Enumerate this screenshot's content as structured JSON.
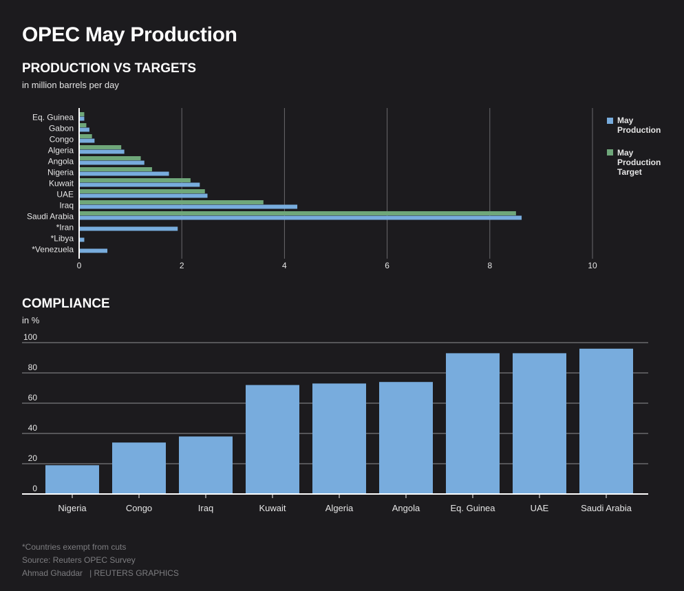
{
  "header": {
    "title": "OPEC May Production"
  },
  "production_section": {
    "title": "PRODUCTION VS TARGETS",
    "subtitle": "in million barrels per day"
  },
  "compliance_section": {
    "title": "COMPLIANCE",
    "subtitle": "in %"
  },
  "footer": {
    "note": "*Countries exempt from cuts",
    "source": "Source: Reuters OPEC Survey",
    "author": "Ahmad Ghaddar",
    "credit": "| REUTERS GRAPHICS"
  },
  "colors": {
    "background": "#1c1b1e",
    "production": "#78acdd",
    "target": "#6fa77a",
    "grid": "#6a6a6d",
    "axis": "#ffffff"
  },
  "chart_data": [
    {
      "type": "bar",
      "orientation": "horizontal",
      "title": "PRODUCTION VS TARGETS",
      "subtitle": "in million barrels per day",
      "categories": [
        "Eq. Guinea",
        "Gabon",
        "Congo",
        "Algeria",
        "Angola",
        "Nigeria",
        "Kuwait",
        "UAE",
        "Iraq",
        "Saudi Arabia",
        "*Iran",
        "*Libya",
        "*Venezuela"
      ],
      "series": [
        {
          "name": "May Production Target",
          "values": [
            0.1,
            0.14,
            0.25,
            0.82,
            1.2,
            1.42,
            2.17,
            2.45,
            3.59,
            8.51,
            null,
            null,
            null
          ]
        },
        {
          "name": "May Production",
          "values": [
            0.1,
            0.2,
            0.3,
            0.88,
            1.27,
            1.75,
            2.35,
            2.5,
            4.25,
            8.62,
            1.92,
            0.1,
            0.55
          ]
        }
      ],
      "xlim": [
        0,
        10
      ],
      "xticks": [
        0,
        2,
        4,
        6,
        8,
        10
      ],
      "grid": true,
      "legend": "right",
      "legend_entries": [
        "May Production",
        "May Production Target"
      ]
    },
    {
      "type": "bar",
      "title": "COMPLIANCE",
      "subtitle": "in %",
      "categories": [
        "Nigeria",
        "Congo",
        "Iraq",
        "Kuwait",
        "Algeria",
        "Angola",
        "Eq. Guinea",
        "UAE",
        "Saudi Arabia"
      ],
      "values": [
        19,
        34,
        38,
        72,
        73,
        74,
        93,
        93,
        96
      ],
      "ylim": [
        0,
        100
      ],
      "yticks": [
        0,
        20,
        40,
        60,
        80,
        100
      ],
      "grid": true
    }
  ]
}
